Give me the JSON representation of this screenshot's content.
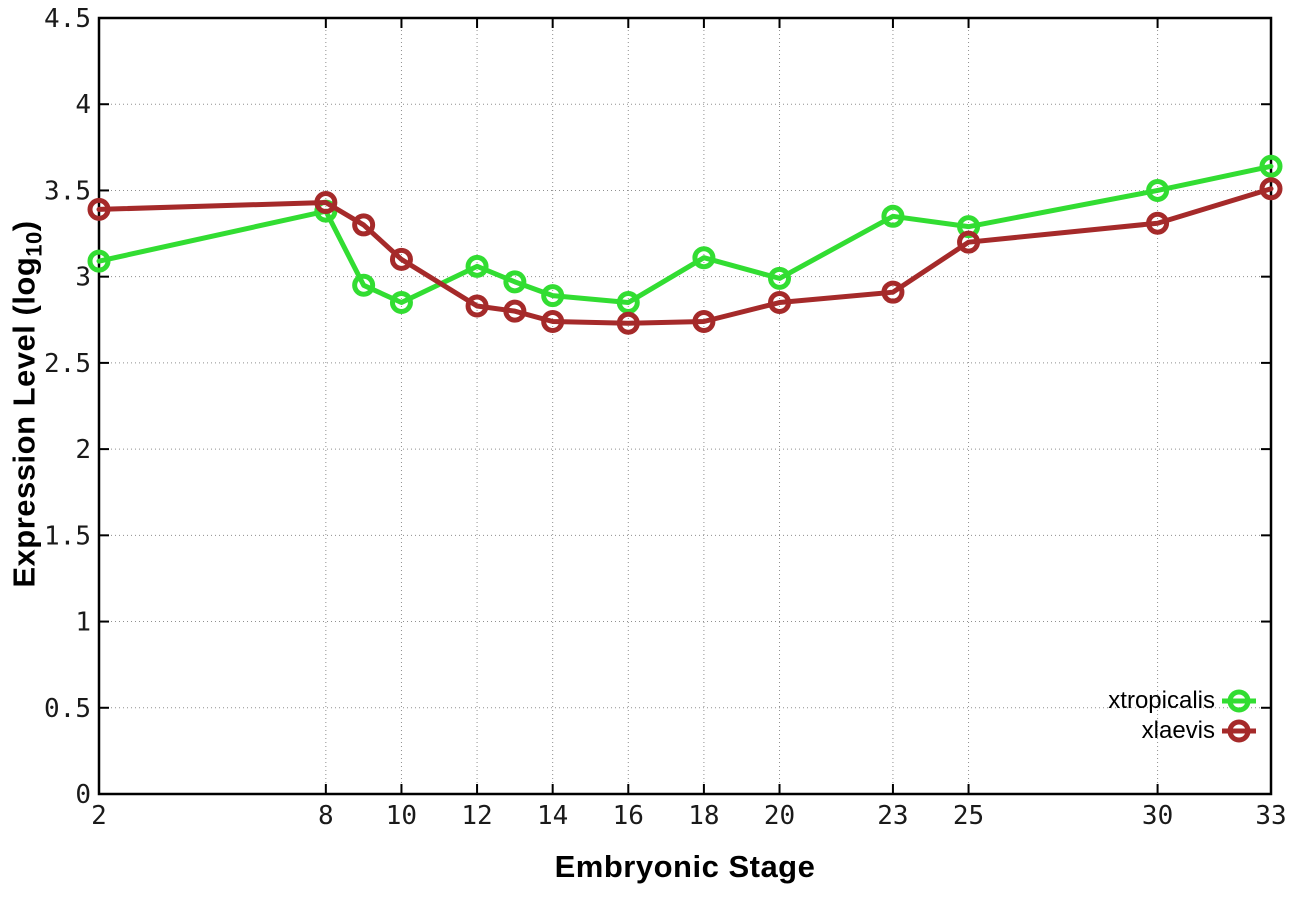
{
  "figure": {
    "background": "#ffffff",
    "axis_color": "#000000",
    "grid_color": "#8f8f8f",
    "tick_label_color": "#1a1a1a"
  },
  "chart_data": {
    "type": "line",
    "title": "",
    "xlabel": "Embryonic Stage",
    "ylabel": "Expression Level (log10)",
    "ylabel_parts": {
      "prefix": "Expression Level (log",
      "subscript": "10",
      "suffix": ")"
    },
    "xlim": [
      2,
      33
    ],
    "ylim": [
      0,
      4.5
    ],
    "x_ticks": [
      2,
      8,
      10,
      12,
      14,
      16,
      18,
      20,
      23,
      25,
      30,
      33
    ],
    "y_ticks": [
      0,
      0.5,
      1,
      1.5,
      2,
      2.5,
      3,
      3.5,
      4,
      4.5
    ],
    "grid": true,
    "legend_position": "bottom-right",
    "x": [
      2,
      8,
      9,
      10,
      12,
      13,
      14,
      16,
      18,
      20,
      23,
      25,
      30,
      33
    ],
    "series": [
      {
        "name": "xtropicalis",
        "color": "#32dd32",
        "values": [
          3.09,
          3.38,
          2.95,
          2.85,
          3.06,
          2.97,
          2.89,
          2.85,
          3.11,
          2.99,
          3.35,
          3.29,
          3.5,
          3.64
        ]
      },
      {
        "name": "xlaevis",
        "color": "#a52a2a",
        "values": [
          3.39,
          3.43,
          3.3,
          3.1,
          2.83,
          2.8,
          2.74,
          2.73,
          2.74,
          2.85,
          2.91,
          3.2,
          3.31,
          3.51
        ]
      }
    ]
  }
}
